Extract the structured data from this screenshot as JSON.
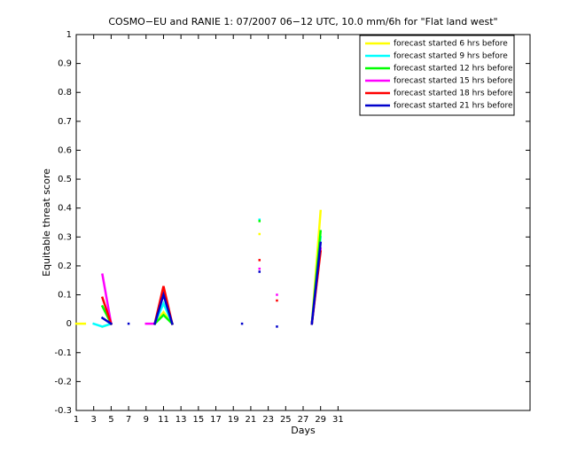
{
  "chart_data": {
    "type": "line",
    "title": "COSMO−EU and RANIE 1: 07/2007 06−12 UTC, 10.0 mm/6h for \"Flat land west\"",
    "xlabel": "Days",
    "ylabel": "Equitable threat score",
    "x": [
      1,
      2,
      3,
      4,
      5,
      6,
      7,
      8,
      9,
      10,
      11,
      12,
      13,
      14,
      15,
      16,
      17,
      18,
      19,
      20,
      21,
      22,
      23,
      24,
      25,
      26,
      27,
      28,
      29,
      30,
      31
    ],
    "xlim": [
      1,
      53
    ],
    "xticks": [
      1,
      3,
      5,
      7,
      9,
      11,
      13,
      15,
      17,
      19,
      21,
      23,
      25,
      27,
      29,
      31
    ],
    "ylim": [
      -0.3,
      1
    ],
    "yticks": [
      -0.3,
      -0.2,
      -0.1,
      0,
      0.1,
      0.2,
      0.3,
      0.4,
      0.5,
      0.6,
      0.7,
      0.8,
      0.9,
      1
    ],
    "legend": "upper right",
    "series": [
      {
        "name": "forecast started 6 hrs before",
        "color": "#ffff00",
        "values": [
          0,
          0,
          null,
          -0.01,
          0,
          null,
          null,
          null,
          null,
          0,
          0.04,
          0,
          null,
          null,
          null,
          null,
          null,
          null,
          null,
          null,
          null,
          0.31,
          null,
          null,
          null,
          null,
          null,
          0,
          0.39,
          null,
          null
        ]
      },
      {
        "name": "forecast started 9 hrs before",
        "color": "#00ffff",
        "values": [
          null,
          null,
          0,
          -0.01,
          0,
          null,
          null,
          null,
          null,
          0,
          0.07,
          0,
          null,
          null,
          null,
          null,
          null,
          null,
          null,
          null,
          null,
          0.36,
          null,
          null,
          null,
          null,
          null,
          0,
          0.3,
          null,
          null
        ]
      },
      {
        "name": "forecast started 12 hrs before",
        "color": "#00ff00",
        "values": [
          null,
          null,
          null,
          0.06,
          0,
          null,
          null,
          null,
          null,
          0,
          0.03,
          0,
          null,
          null,
          null,
          null,
          null,
          null,
          null,
          null,
          null,
          0.355,
          null,
          null,
          null,
          null,
          null,
          0,
          0.32,
          null,
          null
        ]
      },
      {
        "name": "forecast started 15 hrs before",
        "color": "#ff00ff",
        "values": [
          null,
          null,
          null,
          0.17,
          0,
          null,
          null,
          null,
          0,
          0,
          0.11,
          0,
          null,
          null,
          null,
          null,
          null,
          null,
          null,
          null,
          null,
          0.19,
          null,
          0.1,
          null,
          null,
          null,
          0,
          0.26,
          null,
          null
        ]
      },
      {
        "name": "forecast started 18 hrs before",
        "color": "#ff0000",
        "values": [
          null,
          null,
          null,
          0.09,
          0,
          null,
          null,
          null,
          null,
          0,
          0.13,
          0,
          null,
          null,
          null,
          null,
          null,
          null,
          null,
          null,
          null,
          0.22,
          null,
          0.08,
          null,
          null,
          null,
          0,
          0.25,
          null,
          null
        ]
      },
      {
        "name": "forecast started 21 hrs before",
        "color": "#0000cc",
        "values": [
          null,
          null,
          null,
          0.02,
          0,
          null,
          0,
          null,
          null,
          0,
          0.1,
          0,
          null,
          null,
          null,
          null,
          null,
          null,
          null,
          0,
          null,
          0.18,
          null,
          -0.01,
          null,
          null,
          null,
          0,
          0.28,
          null,
          null
        ]
      }
    ]
  }
}
